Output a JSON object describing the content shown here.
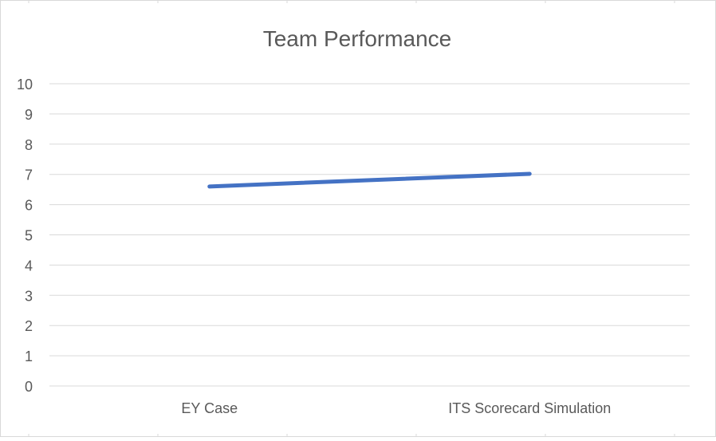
{
  "chart_data": {
    "type": "line",
    "title": "Team Performance",
    "xlabel": "",
    "ylabel": "",
    "categories": [
      "EY Case",
      "ITS Scorecard Simulation"
    ],
    "series": [
      {
        "values": [
          6.6,
          7.02
        ]
      }
    ],
    "ylim": [
      0,
      10
    ],
    "yticks": [
      "0",
      "1",
      "2",
      "3",
      "4",
      "5",
      "6",
      "7",
      "8",
      "9",
      "10"
    ],
    "grid": true,
    "legend": "none",
    "colors": {
      "line": "#4472C4",
      "grid": "#D9D9D9",
      "text": "#595959",
      "border": "#D9D9D9"
    }
  }
}
